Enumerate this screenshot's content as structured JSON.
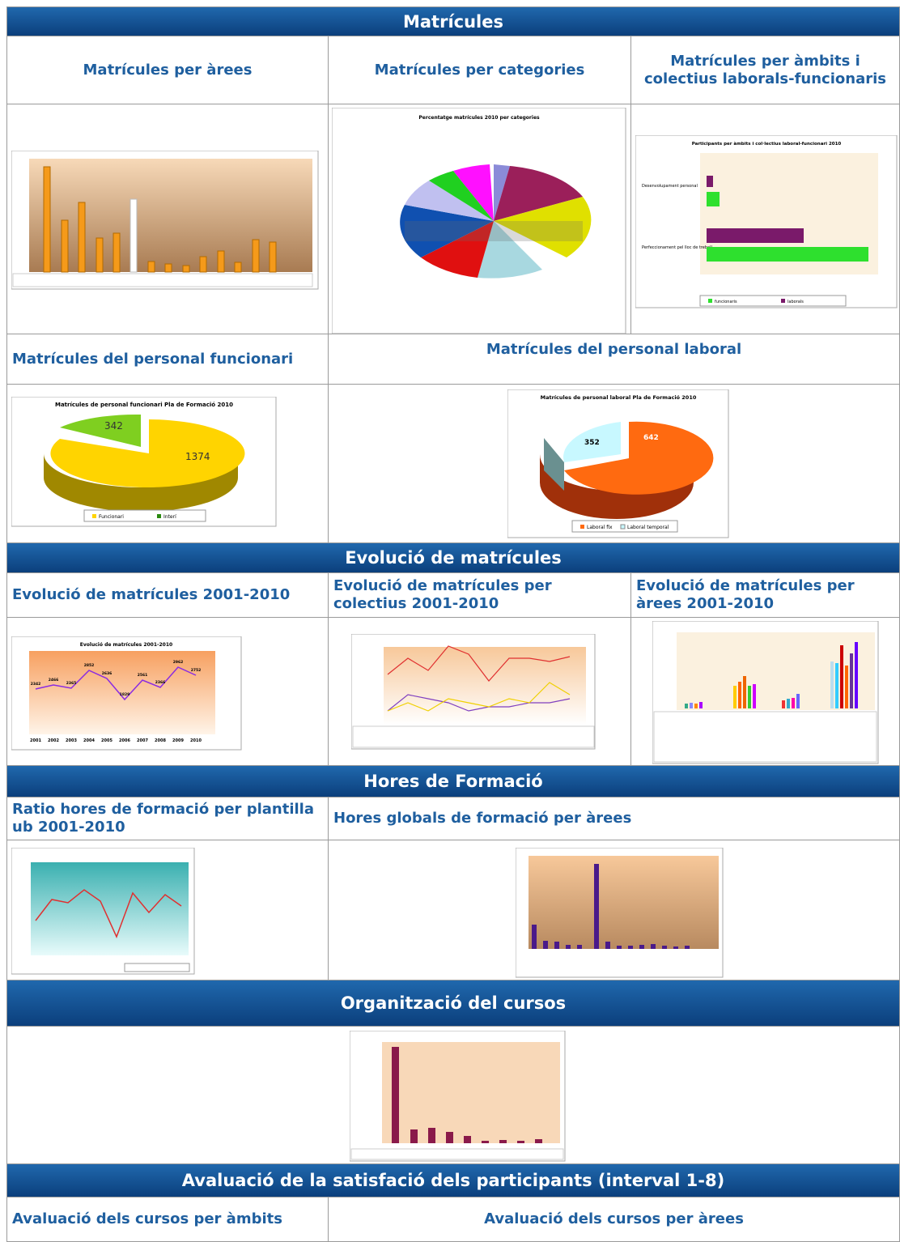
{
  "sections": [
    {
      "title": "Matrícules",
      "rows": [
        [
          "Matrícules per àrees",
          "Matrícules per categories",
          "Matrícules per àmbits i colectius laborals-funcionaris"
        ],
        [
          "Matrícules del personal funcionari",
          "Matrícules del personal laboral"
        ]
      ]
    },
    {
      "title": "Evolució de matrícules",
      "rows": [
        [
          "Evolució de matrícules 2001-2010",
          "Evolució de matrícules per colectius 2001-2010",
          "Evolució de matrícules per àrees 2001-2010"
        ]
      ]
    },
    {
      "title": "Hores de Formació",
      "rows": [
        [
          "Ratio hores de formació per plantilla ub 2001-2010",
          "Hores globals de formació per àrees"
        ]
      ]
    },
    {
      "title": "Organització del cursos",
      "rows": []
    },
    {
      "title": "Avaluació de la satisfació dels participants (interval 1-8)",
      "rows": [
        [
          "Avaluació dels cursos per àmbits",
          "Avaluació dels cursos per àrees"
        ]
      ]
    }
  ],
  "thumbnails": {
    "funcionari": {
      "title": "Matrícules de personal funcionari Pla de Formació 2010",
      "labels": [
        "342",
        "1374"
      ],
      "legend": [
        "Funcionari",
        "Interí"
      ]
    },
    "laboral": {
      "title": "Matrícules de personal laboral Pla de Formació 2010",
      "labels": [
        "352",
        "642"
      ],
      "legend": [
        "Laboral fix",
        "Laboral temporal"
      ]
    },
    "evolucio": {
      "title": "Evolució de matrícules 2001-2010",
      "labels": [
        "2342",
        "2466",
        "2365",
        "2852",
        "2636",
        "1829",
        "2561",
        "2366",
        "2962",
        "2752"
      ],
      "years": [
        "2001",
        "2002",
        "2003",
        "2004",
        "2005",
        "2006",
        "2007",
        "2008",
        "2009",
        "2010"
      ]
    },
    "ambits": {
      "title": "Participants per àmbits i col·lectius laboral-funcionari 2010",
      "categories": [
        "Desenvolupament personal",
        "Perfeccionament pel lloc de treball"
      ],
      "legend": [
        "funcionaris",
        "laborals"
      ]
    },
    "categories": {
      "title": "Percentatge matrícules 2010 per categories"
    }
  }
}
